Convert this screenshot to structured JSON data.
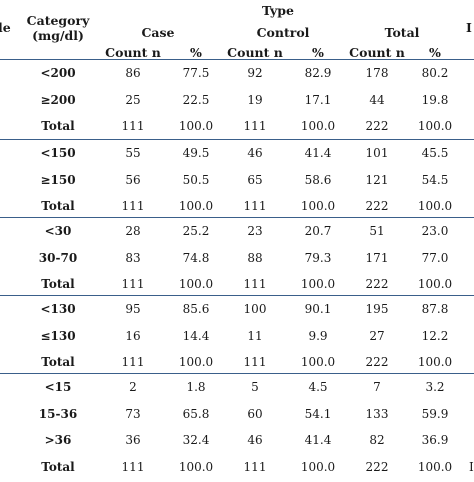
{
  "header": {
    "left_cut": "le",
    "right_cut": "I",
    "category_line1": "Category",
    "category_line2": "(mg/dl)",
    "type": "Type",
    "case": "Case",
    "control": "Control",
    "total": "Total",
    "count_n": "Count n",
    "pct": "%"
  },
  "groups": [
    {
      "rows": [
        {
          "label": "<200",
          "c_n": "86",
          "c_p": "77.5",
          "k_n": "92",
          "k_p": "82.9",
          "t_n": "178",
          "t_p": "80.2",
          "r": ""
        },
        {
          "label": "≥200",
          "c_n": "25",
          "c_p": "22.5",
          "k_n": "19",
          "k_p": "17.1",
          "t_n": "44",
          "t_p": "19.8",
          "r": ""
        },
        {
          "label": "Total",
          "c_n": "111",
          "c_p": "100.0",
          "k_n": "111",
          "k_p": "100.0",
          "t_n": "222",
          "t_p": "100.0",
          "r": ""
        }
      ]
    },
    {
      "rows": [
        {
          "label": "<150",
          "c_n": "55",
          "c_p": "49.5",
          "k_n": "46",
          "k_p": "41.4",
          "t_n": "101",
          "t_p": "45.5",
          "r": ""
        },
        {
          "label": "≥150",
          "c_n": "56",
          "c_p": "50.5",
          "k_n": "65",
          "k_p": "58.6",
          "t_n": "121",
          "t_p": "54.5",
          "r": ""
        },
        {
          "label": "Total",
          "c_n": "111",
          "c_p": "100.0",
          "k_n": "111",
          "k_p": "100.0",
          "t_n": "222",
          "t_p": "100.0",
          "r": ""
        }
      ]
    },
    {
      "rows": [
        {
          "label": "<30",
          "c_n": "28",
          "c_p": "25.2",
          "k_n": "23",
          "k_p": "20.7",
          "t_n": "51",
          "t_p": "23.0",
          "r": ""
        },
        {
          "label": "30-70",
          "c_n": "83",
          "c_p": "74.8",
          "k_n": "88",
          "k_p": "79.3",
          "t_n": "171",
          "t_p": "77.0",
          "r": ""
        },
        {
          "label": "Total",
          "c_n": "111",
          "c_p": "100.0",
          "k_n": "111",
          "k_p": "100.0",
          "t_n": "222",
          "t_p": "100.0",
          "r": ""
        }
      ]
    },
    {
      "rows": [
        {
          "label": "<130",
          "c_n": "95",
          "c_p": "85.6",
          "k_n": "100",
          "k_p": "90.1",
          "t_n": "195",
          "t_p": "87.8",
          "r": ""
        },
        {
          "label": "≤130",
          "c_n": "16",
          "c_p": "14.4",
          "k_n": "11",
          "k_p": "9.9",
          "t_n": "27",
          "t_p": "12.2",
          "r": ""
        },
        {
          "label": "Total",
          "c_n": "111",
          "c_p": "100.0",
          "k_n": "111",
          "k_p": "100.0",
          "t_n": "222",
          "t_p": "100.0",
          "r": ""
        }
      ]
    },
    {
      "rows": [
        {
          "label": "<15",
          "c_n": "2",
          "c_p": "1.8",
          "k_n": "5",
          "k_p": "4.5",
          "t_n": "7",
          "t_p": "3.2",
          "r": ""
        },
        {
          "label": "15-36",
          "c_n": "73",
          "c_p": "65.8",
          "k_n": "60",
          "k_p": "54.1",
          "t_n": "133",
          "t_p": "59.9",
          "r": ""
        },
        {
          "label": ">36",
          "c_n": "36",
          "c_p": "32.4",
          "k_n": "46",
          "k_p": "41.4",
          "t_n": "82",
          "t_p": "36.9",
          "r": ""
        },
        {
          "label": "Total",
          "c_n": "111",
          "c_p": "100.0",
          "k_n": "111",
          "k_p": "100.0",
          "t_n": "222",
          "t_p": "100.0",
          "r": "I"
        }
      ]
    }
  ],
  "colors": {
    "rule": "#3a5f8a",
    "text": "#1a1a1a"
  }
}
